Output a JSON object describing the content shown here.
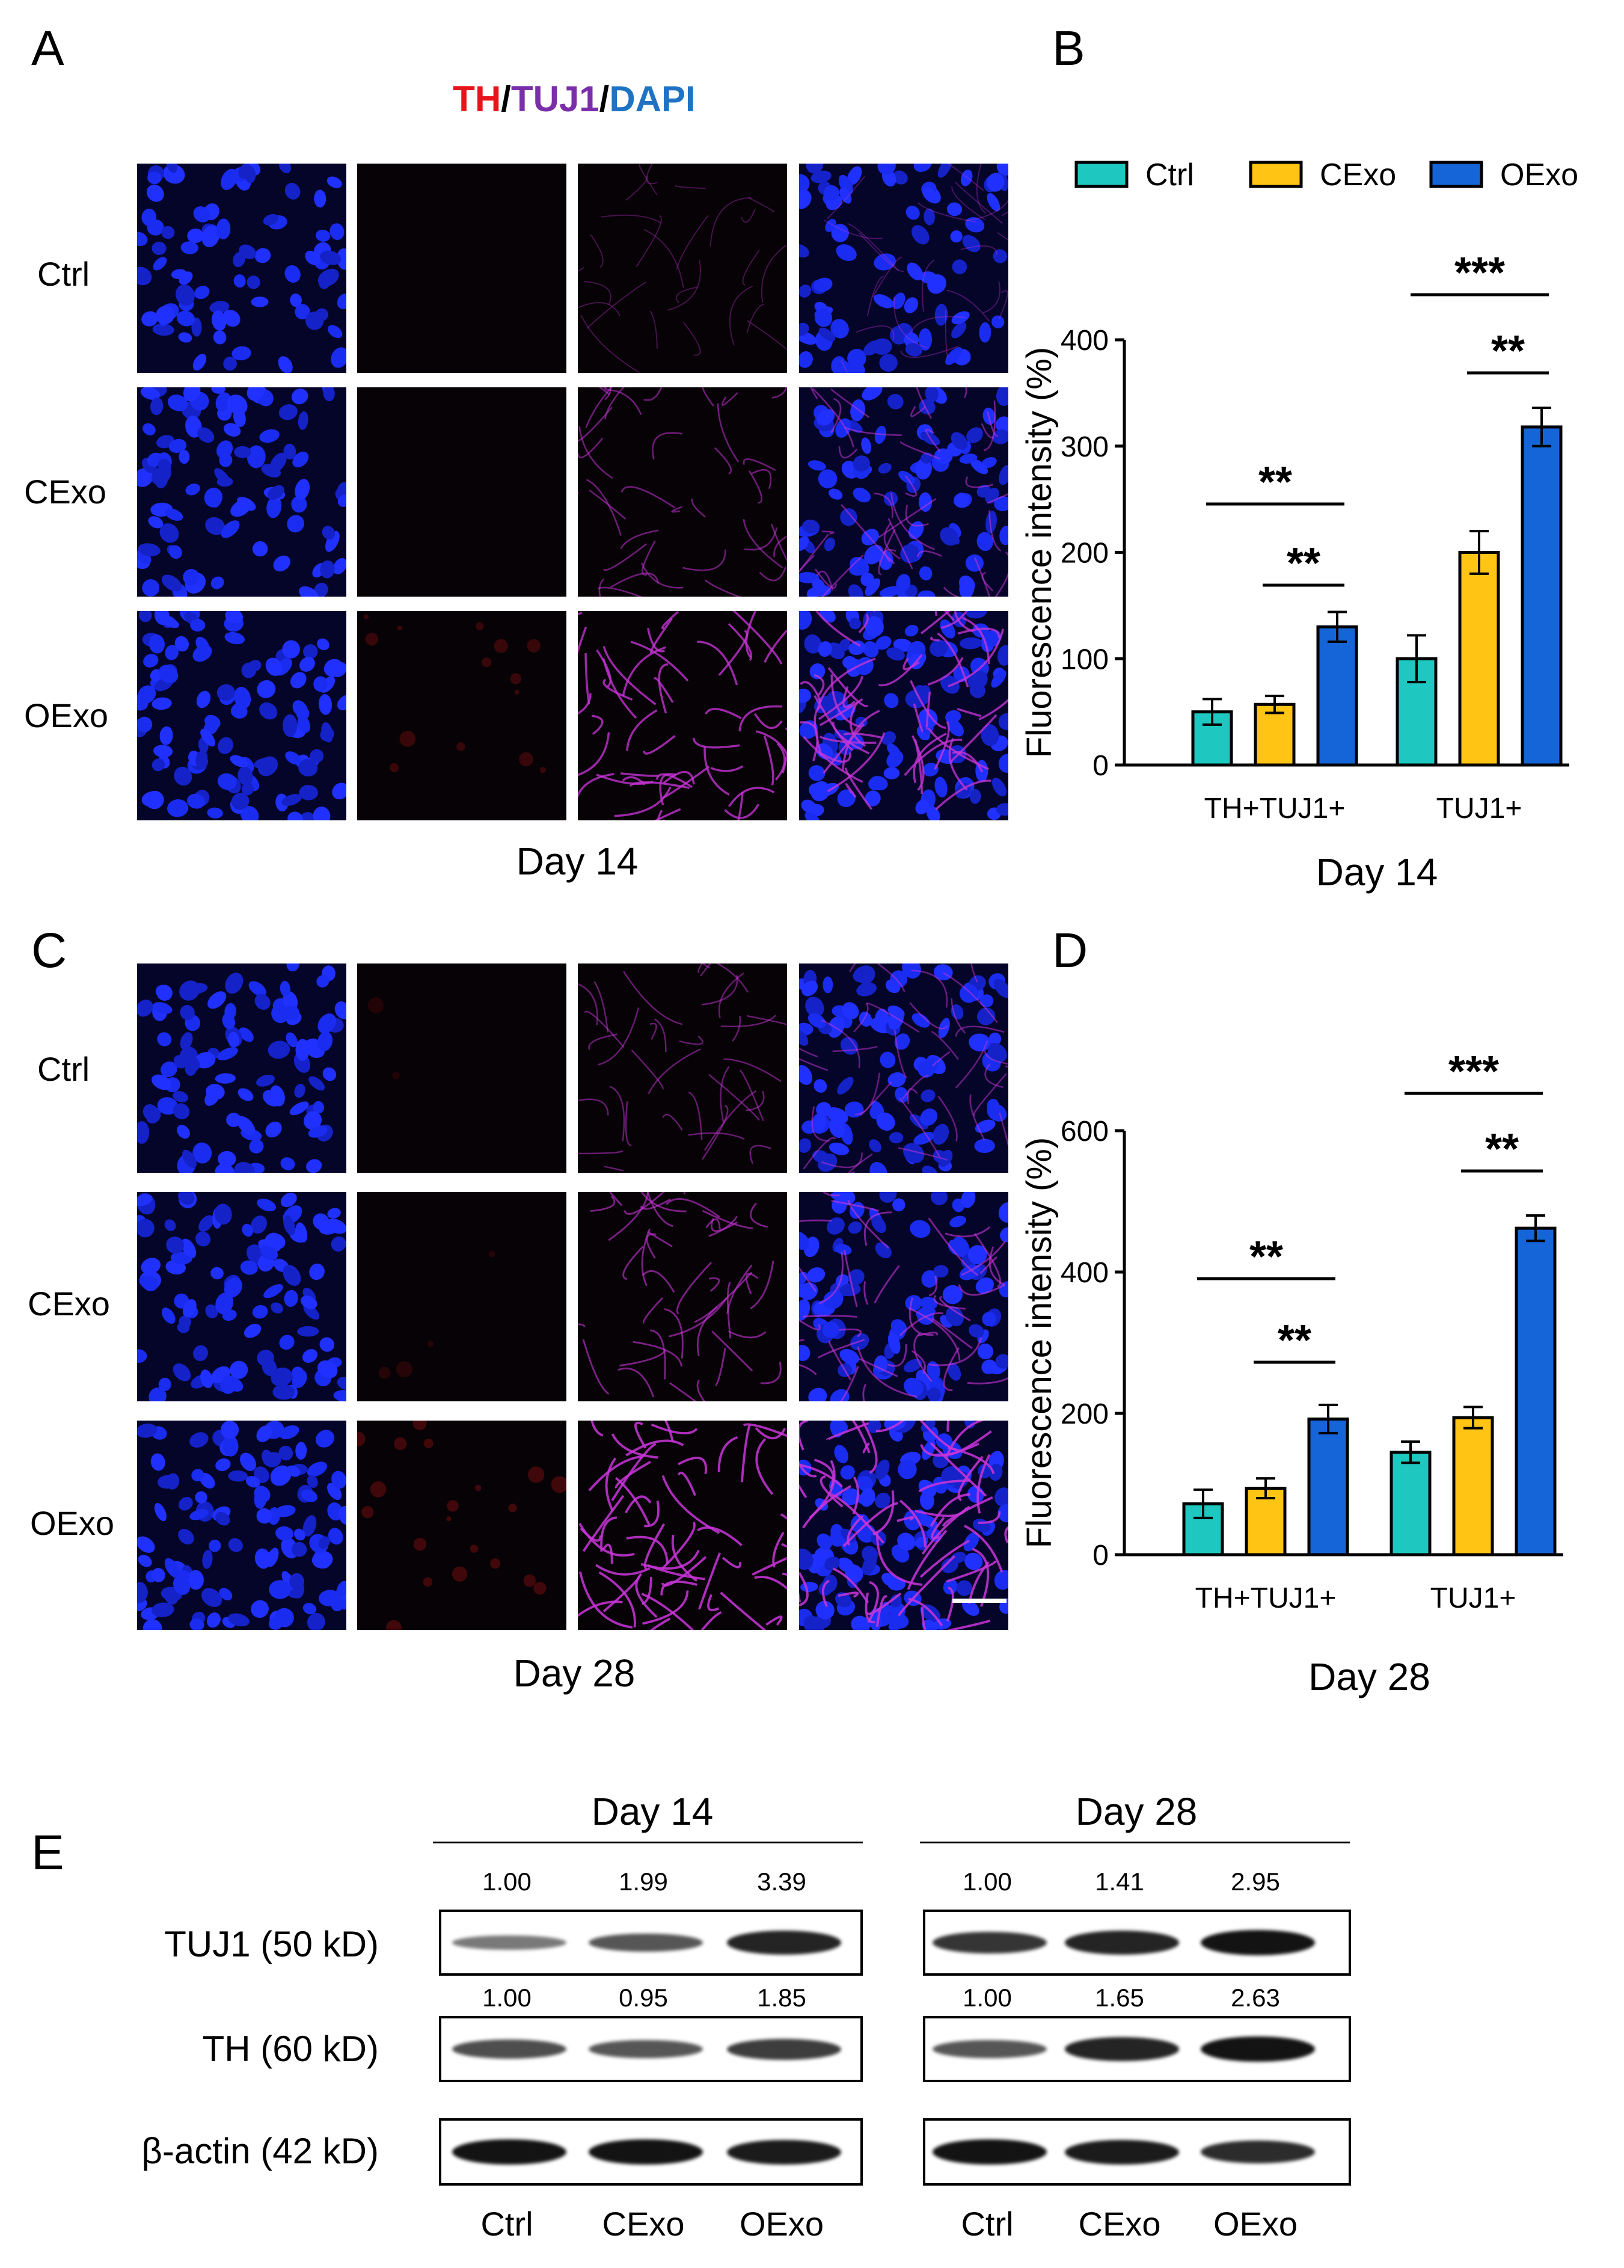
{
  "panels": {
    "A": "A",
    "B": "B",
    "C": "C",
    "D": "D",
    "E": "E"
  },
  "stain_legend": {
    "th": "TH",
    "sep1": "/",
    "tuj1": "TUJ1",
    "sep2": "/",
    "dapi": "DAPI",
    "colors": {
      "th": "#e8141b",
      "tuj1": "#7a2fa8",
      "dapi": "#1f73c4"
    }
  },
  "micrographs": {
    "rows": [
      "Ctrl",
      "CExo",
      "OExo"
    ],
    "day14_label": "Day 14",
    "day28_label": "Day 28"
  },
  "colors": {
    "ctrl": "#1ec8c0",
    "cexo": "#ffc414",
    "oexo": "#1565d8"
  },
  "chart_data": [
    {
      "type": "bar",
      "panel": "B",
      "categories": [
        "TH+TUJ1+",
        "TUJ1+"
      ],
      "series": [
        {
          "name": "Ctrl",
          "values": [
            50,
            100
          ],
          "errors": [
            12,
            22
          ]
        },
        {
          "name": "CExo",
          "values": [
            57,
            200
          ],
          "errors": [
            8,
            20
          ]
        },
        {
          "name": "OExo",
          "values": [
            130,
            318
          ],
          "errors": [
            14,
            18
          ]
        }
      ],
      "xlabel": "Day 14",
      "ylabel": "Fluorescence intensity (%)",
      "ylim": [
        0,
        400
      ],
      "yticks": [
        0,
        100,
        200,
        300,
        400
      ],
      "legend": "top",
      "significance": [
        {
          "group": 0,
          "from": 0,
          "to": 2,
          "label": "**"
        },
        {
          "group": 0,
          "from": 1,
          "to": 2,
          "label": "**"
        },
        {
          "group": 1,
          "from": 0,
          "to": 2,
          "label": "***"
        },
        {
          "group": 1,
          "from": 1,
          "to": 2,
          "label": "**"
        }
      ]
    },
    {
      "type": "bar",
      "panel": "D",
      "categories": [
        "TH+TUJ1+",
        "TUJ1+"
      ],
      "series": [
        {
          "name": "Ctrl",
          "values": [
            72,
            145
          ],
          "errors": [
            20,
            15
          ]
        },
        {
          "name": "CExo",
          "values": [
            94,
            194
          ],
          "errors": [
            14,
            15
          ]
        },
        {
          "name": "OExo",
          "values": [
            192,
            462
          ],
          "errors": [
            20,
            18
          ]
        }
      ],
      "xlabel": "Day 28",
      "ylabel": "Fluorescence intensity (%)",
      "ylim": [
        0,
        600
      ],
      "yticks": [
        0,
        200,
        400,
        600
      ],
      "significance": [
        {
          "group": 0,
          "from": 0,
          "to": 2,
          "label": "**"
        },
        {
          "group": 0,
          "from": 1,
          "to": 2,
          "label": "**"
        },
        {
          "group": 1,
          "from": 0,
          "to": 2,
          "label": "***"
        },
        {
          "group": 1,
          "from": 1,
          "to": 2,
          "label": "**"
        }
      ]
    }
  ],
  "western_blot": {
    "day14_label": "Day 14",
    "day28_label": "Day 28",
    "rows": [
      "TUJ1 (50 kD)",
      "TH (60 kD)",
      "β-actin (42 kD)"
    ],
    "lanes": [
      "Ctrl",
      "CExo",
      "OExo"
    ],
    "tuj1_values": {
      "day14": [
        "1.00",
        "1.99",
        "3.39"
      ],
      "day28": [
        "1.00",
        "1.41",
        "2.95"
      ]
    },
    "th_values": {
      "day14": [
        "1.00",
        "0.95",
        "1.85"
      ],
      "day28": [
        "1.00",
        "1.65",
        "2.63"
      ]
    }
  }
}
